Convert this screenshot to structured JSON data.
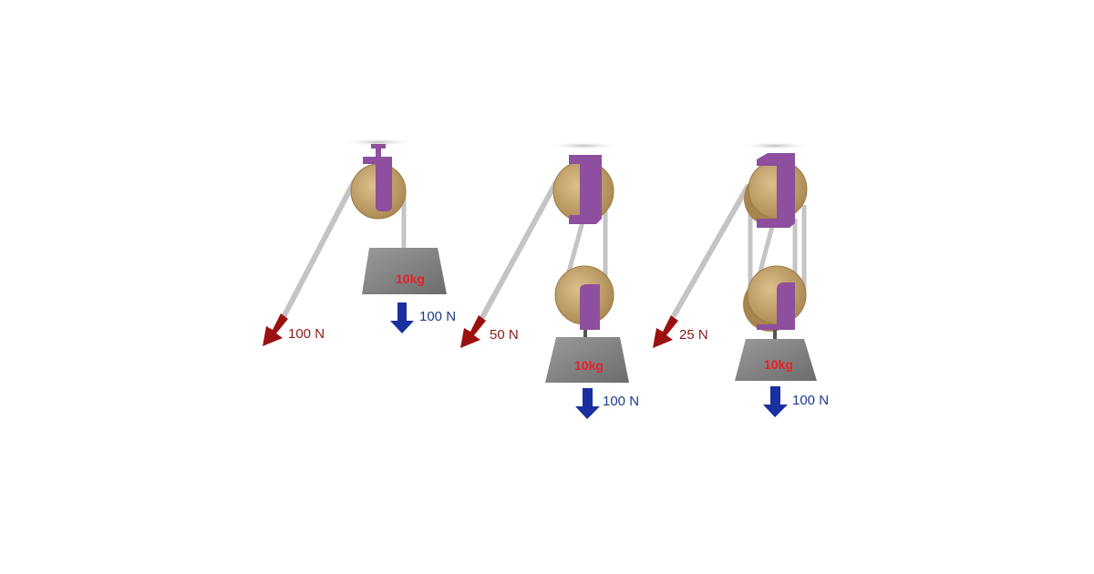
{
  "systems": [
    {
      "pull_force": "100 N",
      "weight_label": "10kg",
      "load_force": "100 N"
    },
    {
      "pull_force": "50 N",
      "weight_label": "10kg",
      "load_force": "100 N"
    },
    {
      "pull_force": "25 N",
      "weight_label": "10kg",
      "load_force": "100 N"
    }
  ],
  "colors": {
    "pull_arrow": "#9b1111",
    "load_arrow": "#1a2fa0",
    "bracket": "#8e4f9e",
    "pulley_wood": "#c9a46a",
    "rope": "#c8c8c8",
    "weight": "#7e7e7e",
    "weight_text": "#e8202a"
  }
}
